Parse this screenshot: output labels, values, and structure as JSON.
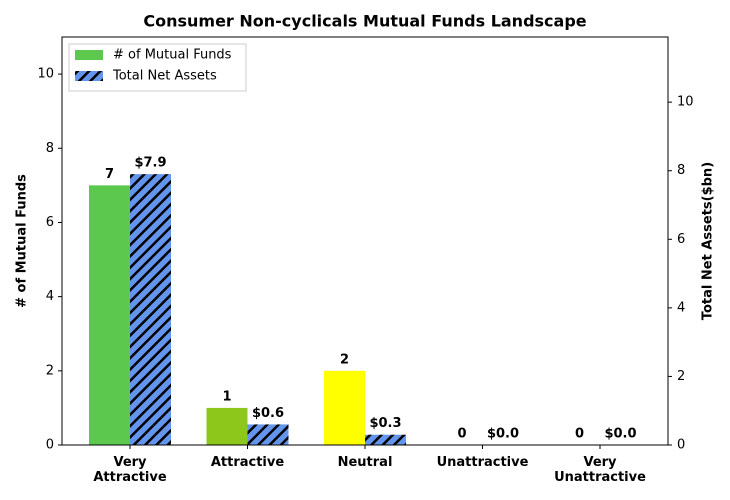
{
  "chart_data": {
    "type": "bar",
    "title": "Consumer Non-cyclicals Mutual Funds Landscape",
    "y_label": "# of Mutual Funds",
    "y2_label": "Total Net Assets($bn)",
    "categories": [
      "Very Attractive",
      "Attractive",
      "Neutral",
      "Unattractive",
      "Very Unattractive"
    ],
    "series": [
      {
        "name": "# of Mutual Funds",
        "color": "#5cc84e",
        "colors": [
          "#5cc84e",
          "#8dc71b",
          "#ffff00",
          "#ff9900",
          "#ff0000"
        ],
        "values": [
          7,
          1,
          2,
          0,
          0
        ]
      },
      {
        "name": "Total Net Assets",
        "color": "#6495ed",
        "hatch": true,
        "axis": "y2",
        "values": [
          7.9,
          0.6,
          0.3,
          0,
          0
        ],
        "value_labels": [
          "$7.9",
          "$0.6",
          "$0.3",
          "$0.0",
          "$0.0"
        ]
      }
    ],
    "ylim": [
      0,
      11
    ],
    "yticks": [
      0,
      2,
      4,
      6,
      8,
      10
    ],
    "y2lim": [
      0,
      11.9
    ],
    "y2ticks": [
      0,
      2,
      4,
      6,
      8,
      10
    ],
    "legend": "upper left"
  }
}
